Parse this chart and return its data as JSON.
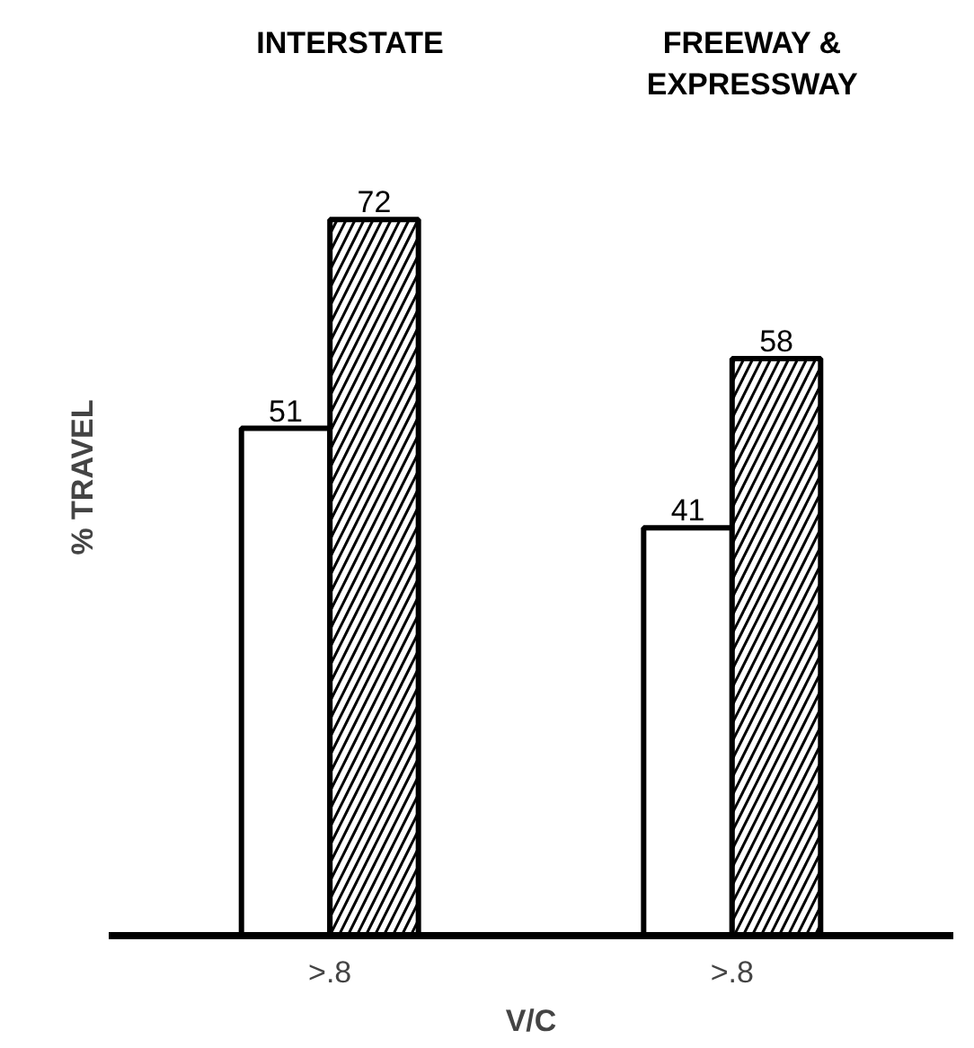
{
  "chart_data": {
    "type": "bar",
    "categories": [
      ">.8",
      ">.8"
    ],
    "xlabel": "V/C",
    "ylabel": "% TRAVEL",
    "annotations": [
      "INTERSTATE",
      "FREEWAY &\nEXPRESSWAY"
    ],
    "series": [
      {
        "color": "#ffffff",
        "values": [
          51,
          41
        ]
      },
      {
        "color": "#000000",
        "values": [
          72,
          58
        ]
      }
    ],
    "data_labels": true
  }
}
